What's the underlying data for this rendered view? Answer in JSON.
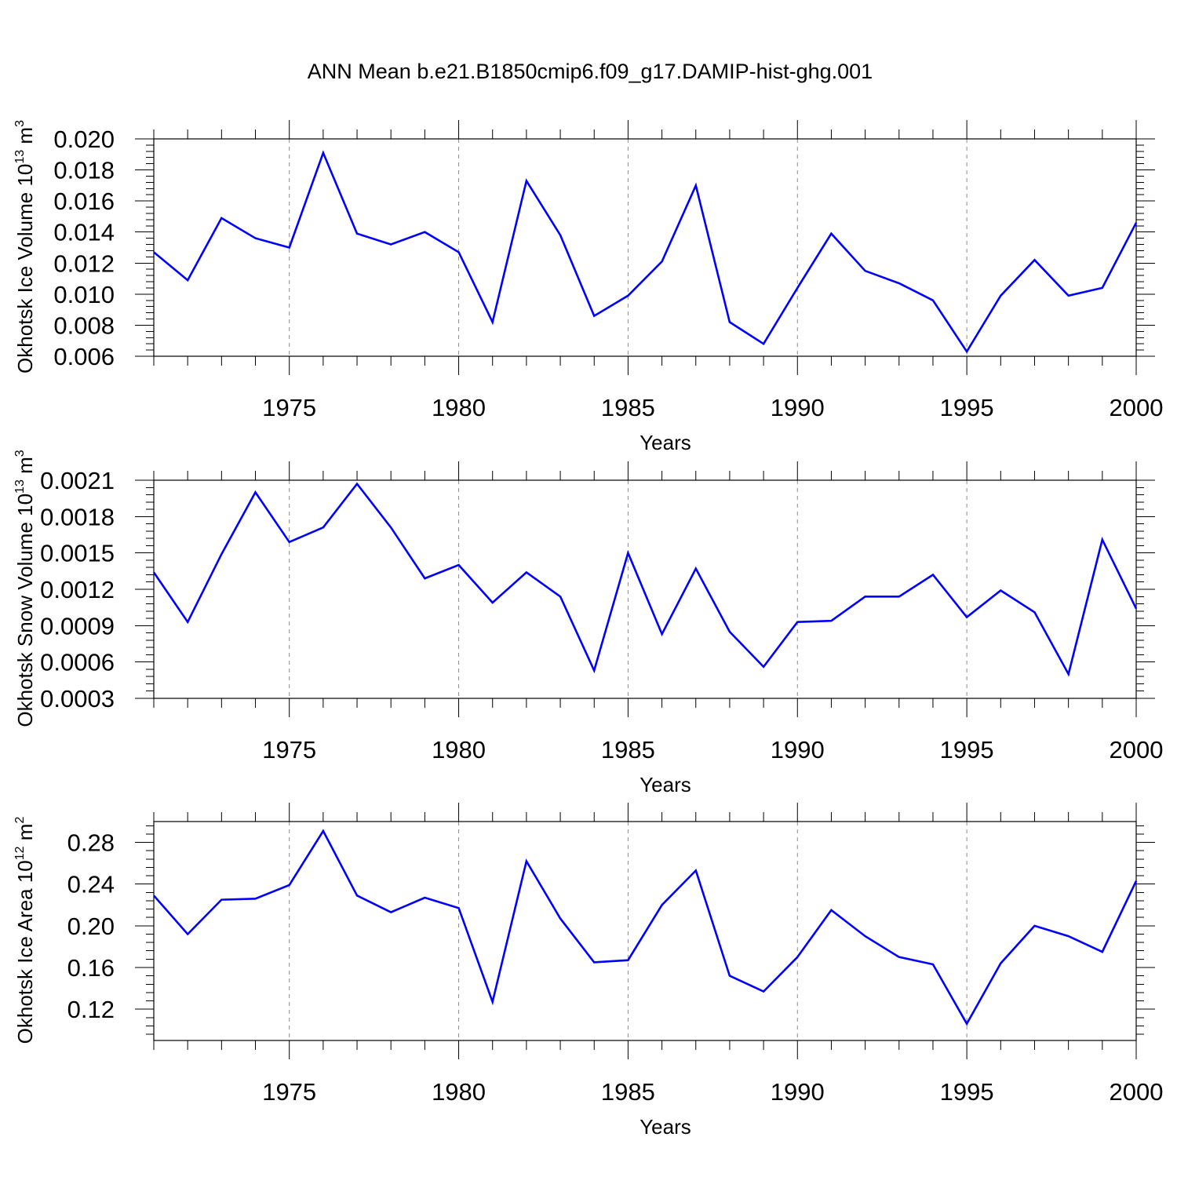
{
  "title": "ANN Mean b.e21.B1850cmip6.f09_g17.DAMIP-hist-ghg.001",
  "colors": {
    "series": "#0000ff",
    "axis": "#000000",
    "grid": "#8c8c8c"
  },
  "chart_data": [
    {
      "type": "line",
      "ylabel": {
        "main": "Okhotsk Ice Volume 10",
        "sup": "13",
        "unit": " m",
        "unit_sup": "3"
      },
      "xlabel": "Years",
      "xlim": [
        1971,
        2000
      ],
      "ylim": [
        0.006,
        0.02
      ],
      "yticks": [
        "0.020",
        "0.018",
        "0.016",
        "0.014",
        "0.012",
        "0.010",
        "0.008",
        "0.006"
      ],
      "ytick_values": [
        0.02,
        0.018,
        0.016,
        0.014,
        0.012,
        0.01,
        0.008,
        0.006
      ],
      "xticks": [
        "1975",
        "1980",
        "1985",
        "1990",
        "1995",
        "2000"
      ],
      "xtick_values": [
        1975,
        1980,
        1985,
        1990,
        1995,
        2000
      ],
      "x": [
        1971,
        1972,
        1973,
        1974,
        1975,
        1976,
        1977,
        1978,
        1979,
        1980,
        1981,
        1982,
        1983,
        1984,
        1985,
        1986,
        1987,
        1988,
        1989,
        1990,
        1991,
        1992,
        1993,
        1994,
        1995,
        1996,
        1997,
        1998,
        1999,
        2000
      ],
      "series": [
        {
          "name": "Okhotsk Ice Volume",
          "values": [
            0.0127,
            0.0109,
            0.0149,
            0.0136,
            0.013,
            0.0191,
            0.0139,
            0.0132,
            0.014,
            0.0127,
            0.0082,
            0.0173,
            0.0138,
            0.0086,
            0.0099,
            0.0121,
            0.017,
            0.0082,
            0.0068,
            0.0104,
            0.0139,
            0.0115,
            0.0107,
            0.0096,
            0.0063,
            0.0099,
            0.0122,
            0.0099,
            0.0104,
            0.0146
          ]
        }
      ]
    },
    {
      "type": "line",
      "ylabel": {
        "main": "Okhotsk Snow Volume 10",
        "sup": "13",
        "unit": " m",
        "unit_sup": "3"
      },
      "xlabel": "Years",
      "xlim": [
        1971,
        2000
      ],
      "ylim": [
        0.0003,
        0.0021
      ],
      "yticks": [
        "0.0021",
        "0.0018",
        "0.0015",
        "0.0012",
        "0.0009",
        "0.0006",
        "0.0003"
      ],
      "ytick_values": [
        0.0021,
        0.0018,
        0.0015,
        0.0012,
        0.0009,
        0.0006,
        0.0003
      ],
      "xticks": [
        "1975",
        "1980",
        "1985",
        "1990",
        "1995",
        "2000"
      ],
      "xtick_values": [
        1975,
        1980,
        1985,
        1990,
        1995,
        2000
      ],
      "x": [
        1971,
        1972,
        1973,
        1974,
        1975,
        1976,
        1977,
        1978,
        1979,
        1980,
        1981,
        1982,
        1983,
        1984,
        1985,
        1986,
        1987,
        1988,
        1989,
        1990,
        1991,
        1992,
        1993,
        1994,
        1995,
        1996,
        1997,
        1998,
        1999,
        2000
      ],
      "series": [
        {
          "name": "Okhotsk Snow Volume",
          "values": [
            0.00134,
            0.00093,
            0.00149,
            0.002,
            0.00159,
            0.00171,
            0.00207,
            0.00171,
            0.00129,
            0.0014,
            0.00109,
            0.00134,
            0.00114,
            0.00053,
            0.0015,
            0.00083,
            0.00137,
            0.00085,
            0.00056,
            0.00093,
            0.00094,
            0.00114,
            0.00114,
            0.00132,
            0.00097,
            0.00119,
            0.00101,
            0.0005,
            0.00161,
            0.00104
          ]
        }
      ]
    },
    {
      "type": "line",
      "ylabel": {
        "main": "Okhotsk Ice Area 10",
        "sup": "12",
        "unit": " m",
        "unit_sup": "2"
      },
      "xlabel": "Years",
      "xlim": [
        1971,
        2000
      ],
      "ylim": [
        0.09,
        0.3
      ],
      "yticks": [
        "0.28",
        "0.24",
        "0.20",
        "0.16",
        "0.12"
      ],
      "ytick_values": [
        0.28,
        0.24,
        0.2,
        0.16,
        0.12
      ],
      "xticks": [
        "1975",
        "1980",
        "1985",
        "1990",
        "1995",
        "2000"
      ],
      "xtick_values": [
        1975,
        1980,
        1985,
        1990,
        1995,
        2000
      ],
      "x": [
        1971,
        1972,
        1973,
        1974,
        1975,
        1976,
        1977,
        1978,
        1979,
        1980,
        1981,
        1982,
        1983,
        1984,
        1985,
        1986,
        1987,
        1988,
        1989,
        1990,
        1991,
        1992,
        1993,
        1994,
        1995,
        1996,
        1997,
        1998,
        1999,
        2000
      ],
      "series": [
        {
          "name": "Okhotsk Ice Area",
          "values": [
            0.229,
            0.192,
            0.225,
            0.226,
            0.239,
            0.291,
            0.229,
            0.213,
            0.227,
            0.217,
            0.127,
            0.262,
            0.207,
            0.165,
            0.167,
            0.22,
            0.253,
            0.152,
            0.137,
            0.17,
            0.215,
            0.19,
            0.17,
            0.163,
            0.106,
            0.164,
            0.2,
            0.19,
            0.175,
            0.243
          ]
        }
      ]
    }
  ]
}
